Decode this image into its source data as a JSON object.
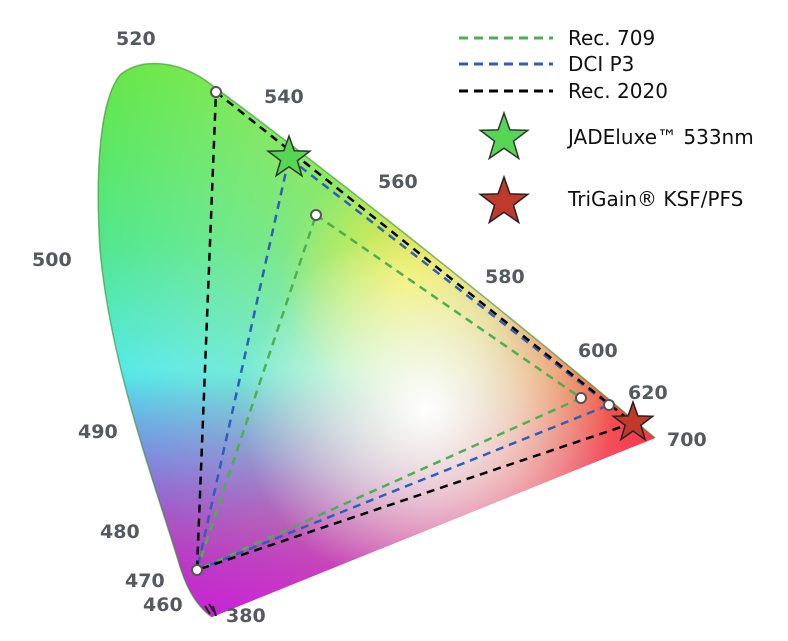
{
  "wavelength_labels": {
    "w520": "520",
    "w540": "540",
    "w560": "560",
    "w580": "580",
    "w600": "600",
    "w620": "620",
    "w700": "700",
    "w500": "500",
    "w490": "490",
    "w480": "480",
    "w470": "470",
    "w460": "460",
    "w380": "380"
  },
  "legend": {
    "rec709": "Rec. 709",
    "dcip3": "DCI P3",
    "rec2020": "Rec. 2020",
    "jadeluxe": "JADEluxe™ 533nm",
    "trigain": "TriGain® KSF/PFS"
  },
  "colors": {
    "rec709": "#4caf50",
    "dcip3": "#2e5fb8",
    "rec2020": "#000000",
    "jadeluxe_star": "#55d655",
    "trigain_star": "#c0392b"
  }
}
